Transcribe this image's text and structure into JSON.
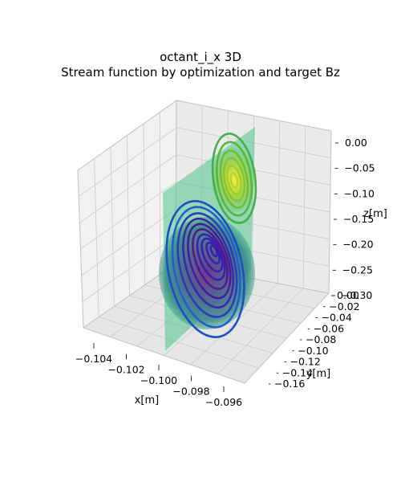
{
  "chart_data": {
    "type": "3d-surface-contour",
    "title_line1": "octant_i_x 3D",
    "title_line2": "Stream function by optimization and target Bz",
    "xlabel": "x[m]",
    "ylabel": "y[m]",
    "zlabel": "z[m]",
    "x_ticks": [
      "−0.104",
      "−0.102",
      "−0.100",
      "−0.098",
      "−0.096"
    ],
    "y_ticks": [
      "0.00",
      "−0.02",
      "−0.04",
      "−0.06",
      "−0.08",
      "−0.10",
      "−0.12",
      "−0.14",
      "−0.16"
    ],
    "z_ticks": [
      "0.00",
      "−0.05",
      "−0.10",
      "−0.15",
      "−0.20",
      "−0.25",
      "−0.30"
    ],
    "xlim": [
      -0.105,
      -0.095
    ],
    "ylim": [
      -0.17,
      0.0
    ],
    "zlim": [
      -0.3,
      0.0
    ],
    "grid": true,
    "colormap": "viridis (surface) / plasma (contours)",
    "extrema": [
      {
        "name": "maximum",
        "y": -0.03,
        "z": -0.1,
        "color": "#f5f032"
      },
      {
        "name": "minimum",
        "y": -0.1,
        "z": -0.27,
        "color": "#4b1187"
      }
    ]
  }
}
